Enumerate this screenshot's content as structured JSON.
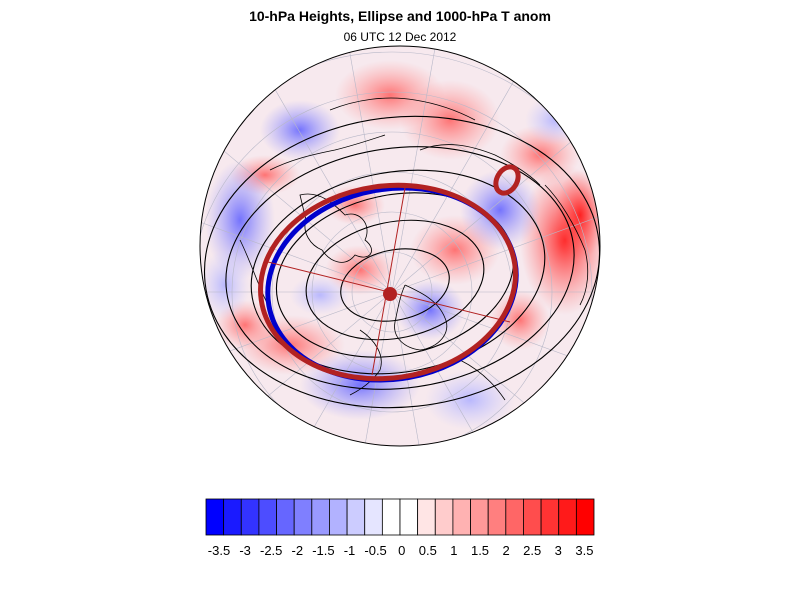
{
  "title": "10-hPa Heights, Ellipse and 1000-hPa T anom",
  "subtitle": "06 UTC 12 Dec 2012",
  "colorbar": {
    "labels": [
      "-3.5",
      "-3",
      "-2.5",
      "-2",
      "-1.5",
      "-1",
      "-0.5",
      "0",
      "0.5",
      "1",
      "1.5",
      "2",
      "2.5",
      "3",
      "3.5"
    ],
    "colors": [
      "#0000ff",
      "#1a1aff",
      "#3333ff",
      "#4d4dff",
      "#6666ff",
      "#7f7fff",
      "#9999ff",
      "#b2b2ff",
      "#ccccff",
      "#e5e5ff",
      "#ffffff",
      "#ffffff",
      "#ffe5e5",
      "#ffcccc",
      "#ffb2b2",
      "#ff9999",
      "#ff7f7f",
      "#ff6666",
      "#ff4d4d",
      "#ff3333",
      "#ff1a1a",
      "#ff0000"
    ]
  },
  "map": {
    "projection": "polar-stereographic",
    "hemisphere": "north",
    "colors": {
      "ellipse_red": "#b22222",
      "ellipse_blue": "#0000cc",
      "contour": "#000000",
      "coast": "#000000",
      "grid": "#bbbbbb"
    }
  }
}
